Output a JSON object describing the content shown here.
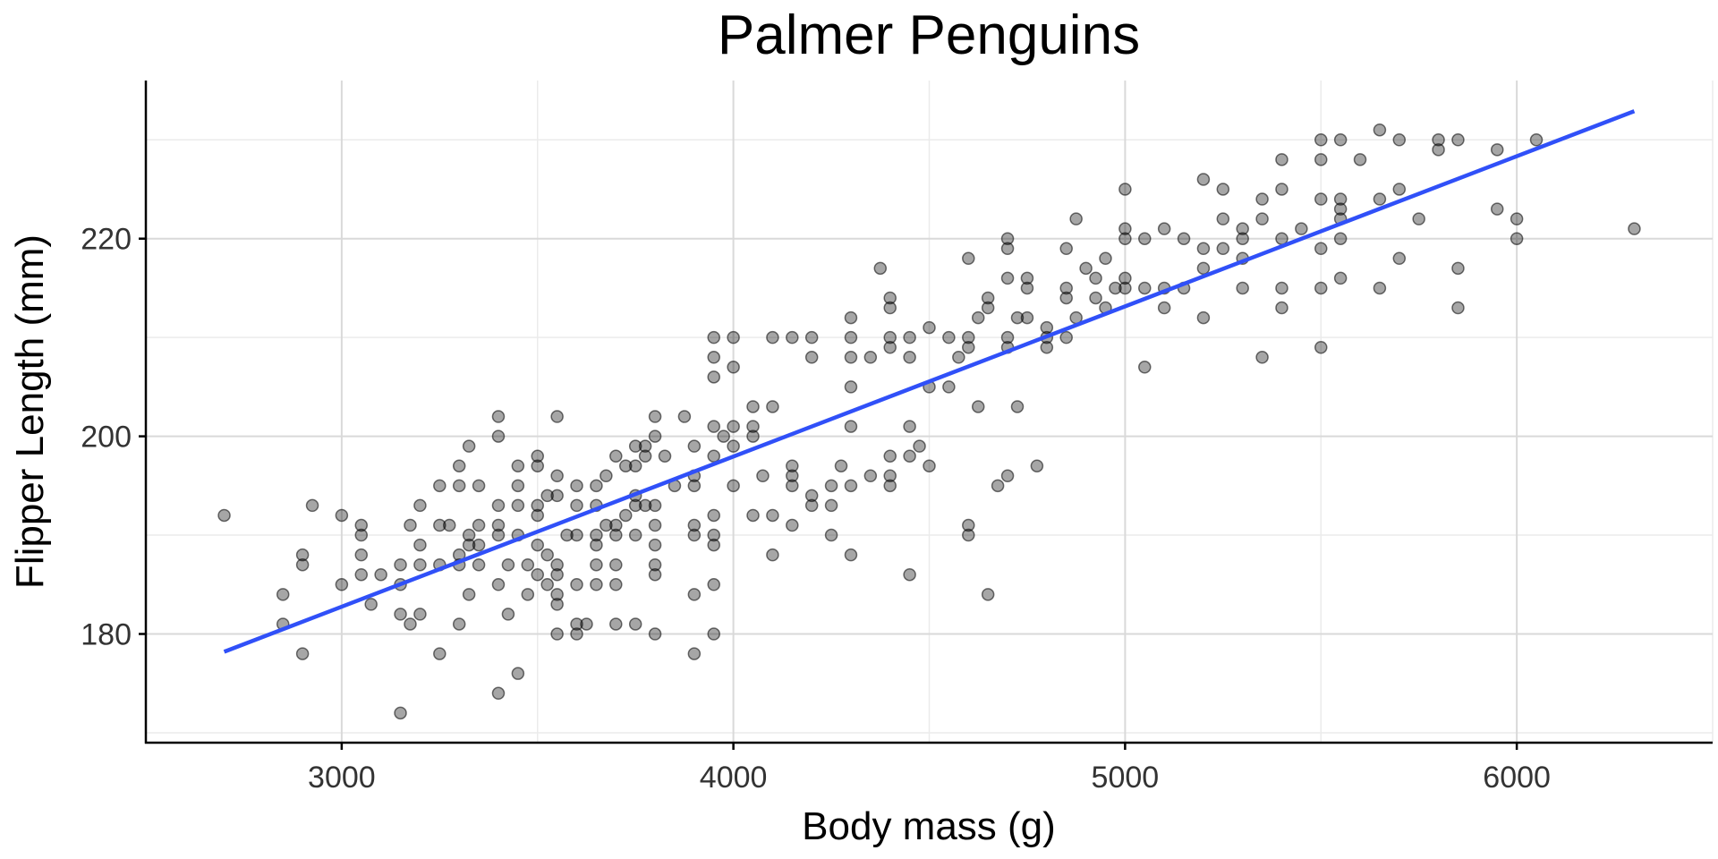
{
  "chart_data": {
    "type": "scatter",
    "title": "Palmer Penguins",
    "xlabel": "Body mass (g)",
    "ylabel": "Flipper Length (mm)",
    "xlim": [
      2500,
      6500
    ],
    "ylim": [
      169,
      236
    ],
    "x_ticks": [
      3000,
      4000,
      5000,
      6000
    ],
    "y_ticks": [
      180,
      200,
      220
    ],
    "grid": true,
    "colors": {
      "points": "#000000",
      "fit_line": "#3050f8"
    },
    "fit_line": {
      "x": [
        2700,
        6300
      ],
      "y": [
        178.2,
        232.9
      ]
    },
    "points": [
      [
        2700,
        192
      ],
      [
        2850,
        184
      ],
      [
        2850,
        181
      ],
      [
        2900,
        188
      ],
      [
        2900,
        187
      ],
      [
        2900,
        178
      ],
      [
        2925,
        193
      ],
      [
        3000,
        192
      ],
      [
        3000,
        185
      ],
      [
        3050,
        191
      ],
      [
        3050,
        190
      ],
      [
        3050,
        188
      ],
      [
        3050,
        186
      ],
      [
        3075,
        183
      ],
      [
        3100,
        186
      ],
      [
        3150,
        187
      ],
      [
        3150,
        185
      ],
      [
        3150,
        182
      ],
      [
        3150,
        172
      ],
      [
        3175,
        191
      ],
      [
        3175,
        181
      ],
      [
        3200,
        193
      ],
      [
        3200,
        189
      ],
      [
        3200,
        187
      ],
      [
        3200,
        182
      ],
      [
        3250,
        195
      ],
      [
        3250,
        191
      ],
      [
        3250,
        187
      ],
      [
        3250,
        178
      ],
      [
        3275,
        191
      ],
      [
        3300,
        197
      ],
      [
        3300,
        195
      ],
      [
        3300,
        188
      ],
      [
        3300,
        187
      ],
      [
        3300,
        181
      ],
      [
        3325,
        199
      ],
      [
        3325,
        190
      ],
      [
        3325,
        189
      ],
      [
        3325,
        184
      ],
      [
        3350,
        195
      ],
      [
        3350,
        191
      ],
      [
        3350,
        189
      ],
      [
        3350,
        187
      ],
      [
        3400,
        202
      ],
      [
        3400,
        200
      ],
      [
        3400,
        193
      ],
      [
        3400,
        191
      ],
      [
        3400,
        190
      ],
      [
        3400,
        185
      ],
      [
        3400,
        174
      ],
      [
        3425,
        187
      ],
      [
        3425,
        182
      ],
      [
        3450,
        197
      ],
      [
        3450,
        195
      ],
      [
        3450,
        193
      ],
      [
        3450,
        190
      ],
      [
        3450,
        176
      ],
      [
        3475,
        187
      ],
      [
        3475,
        184
      ],
      [
        3500,
        198
      ],
      [
        3500,
        197
      ],
      [
        3500,
        193
      ],
      [
        3500,
        192
      ],
      [
        3500,
        189
      ],
      [
        3500,
        186
      ],
      [
        3525,
        194
      ],
      [
        3525,
        188
      ],
      [
        3525,
        185
      ],
      [
        3550,
        202
      ],
      [
        3550,
        196
      ],
      [
        3550,
        194
      ],
      [
        3550,
        187
      ],
      [
        3550,
        186
      ],
      [
        3550,
        184
      ],
      [
        3550,
        183
      ],
      [
        3550,
        180
      ],
      [
        3575,
        190
      ],
      [
        3600,
        195
      ],
      [
        3600,
        193
      ],
      [
        3600,
        190
      ],
      [
        3600,
        185
      ],
      [
        3600,
        181
      ],
      [
        3600,
        180
      ],
      [
        3625,
        181
      ],
      [
        3650,
        195
      ],
      [
        3650,
        193
      ],
      [
        3650,
        190
      ],
      [
        3650,
        189
      ],
      [
        3650,
        187
      ],
      [
        3650,
        185
      ],
      [
        3675,
        196
      ],
      [
        3675,
        191
      ],
      [
        3700,
        198
      ],
      [
        3700,
        191
      ],
      [
        3700,
        190
      ],
      [
        3700,
        187
      ],
      [
        3700,
        185
      ],
      [
        3700,
        181
      ],
      [
        3725,
        197
      ],
      [
        3725,
        192
      ],
      [
        3750,
        199
      ],
      [
        3750,
        197
      ],
      [
        3750,
        194
      ],
      [
        3750,
        193
      ],
      [
        3750,
        190
      ],
      [
        3750,
        181
      ],
      [
        3775,
        198
      ],
      [
        3775,
        193
      ],
      [
        3775,
        199
      ],
      [
        3800,
        202
      ],
      [
        3800,
        200
      ],
      [
        3800,
        193
      ],
      [
        3800,
        191
      ],
      [
        3800,
        189
      ],
      [
        3800,
        187
      ],
      [
        3800,
        186
      ],
      [
        3800,
        180
      ],
      [
        3825,
        198
      ],
      [
        3850,
        195
      ],
      [
        3875,
        202
      ],
      [
        3900,
        199
      ],
      [
        3900,
        196
      ],
      [
        3900,
        195
      ],
      [
        3900,
        191
      ],
      [
        3900,
        190
      ],
      [
        3900,
        184
      ],
      [
        3900,
        178
      ],
      [
        3950,
        210
      ],
      [
        3950,
        208
      ],
      [
        3950,
        206
      ],
      [
        3950,
        201
      ],
      [
        3950,
        198
      ],
      [
        3950,
        192
      ],
      [
        3950,
        190
      ],
      [
        3950,
        189
      ],
      [
        3950,
        185
      ],
      [
        3950,
        180
      ],
      [
        3975,
        200
      ],
      [
        4000,
        210
      ],
      [
        4000,
        207
      ],
      [
        4000,
        201
      ],
      [
        4000,
        199
      ],
      [
        4000,
        195
      ],
      [
        4050,
        203
      ],
      [
        4050,
        201
      ],
      [
        4050,
        200
      ],
      [
        4050,
        192
      ],
      [
        4075,
        196
      ],
      [
        4100,
        210
      ],
      [
        4100,
        203
      ],
      [
        4100,
        192
      ],
      [
        4100,
        188
      ],
      [
        4150,
        210
      ],
      [
        4150,
        197
      ],
      [
        4150,
        196
      ],
      [
        4150,
        195
      ],
      [
        4150,
        191
      ],
      [
        4200,
        210
      ],
      [
        4200,
        208
      ],
      [
        4200,
        194
      ],
      [
        4200,
        193
      ],
      [
        4250,
        195
      ],
      [
        4250,
        193
      ],
      [
        4250,
        190
      ],
      [
        4275,
        197
      ],
      [
        4300,
        212
      ],
      [
        4300,
        210
      ],
      [
        4300,
        208
      ],
      [
        4300,
        205
      ],
      [
        4300,
        201
      ],
      [
        4300,
        195
      ],
      [
        4300,
        188
      ],
      [
        4350,
        208
      ],
      [
        4350,
        196
      ],
      [
        4375,
        217
      ],
      [
        4400,
        214
      ],
      [
        4400,
        213
      ],
      [
        4400,
        210
      ],
      [
        4400,
        209
      ],
      [
        4400,
        198
      ],
      [
        4400,
        196
      ],
      [
        4400,
        195
      ],
      [
        4450,
        210
      ],
      [
        4450,
        208
      ],
      [
        4450,
        201
      ],
      [
        4450,
        198
      ],
      [
        4450,
        186
      ],
      [
        4475,
        199
      ],
      [
        4500,
        211
      ],
      [
        4500,
        205
      ],
      [
        4500,
        197
      ],
      [
        4550,
        210
      ],
      [
        4550,
        205
      ],
      [
        4575,
        208
      ],
      [
        4600,
        218
      ],
      [
        4600,
        210
      ],
      [
        4600,
        209
      ],
      [
        4600,
        191
      ],
      [
        4600,
        190
      ],
      [
        4625,
        212
      ],
      [
        4625,
        203
      ],
      [
        4650,
        214
      ],
      [
        4650,
        213
      ],
      [
        4650,
        184
      ],
      [
        4675,
        195
      ],
      [
        4700,
        220
      ],
      [
        4700,
        219
      ],
      [
        4700,
        216
      ],
      [
        4700,
        210
      ],
      [
        4700,
        209
      ],
      [
        4700,
        196
      ],
      [
        4725,
        212
      ],
      [
        4725,
        203
      ],
      [
        4750,
        216
      ],
      [
        4750,
        215
      ],
      [
        4750,
        212
      ],
      [
        4775,
        197
      ],
      [
        4800,
        211
      ],
      [
        4800,
        210
      ],
      [
        4800,
        209
      ],
      [
        4850,
        219
      ],
      [
        4850,
        215
      ],
      [
        4850,
        214
      ],
      [
        4850,
        210
      ],
      [
        4875,
        222
      ],
      [
        4875,
        212
      ],
      [
        4900,
        217
      ],
      [
        4925,
        216
      ],
      [
        4925,
        214
      ],
      [
        4950,
        218
      ],
      [
        4950,
        213
      ],
      [
        4975,
        215
      ],
      [
        5000,
        225
      ],
      [
        5000,
        221
      ],
      [
        5000,
        220
      ],
      [
        5000,
        216
      ],
      [
        5000,
        215
      ],
      [
        5050,
        220
      ],
      [
        5050,
        215
      ],
      [
        5050,
        207
      ],
      [
        5100,
        221
      ],
      [
        5100,
        215
      ],
      [
        5100,
        213
      ],
      [
        5150,
        220
      ],
      [
        5150,
        215
      ],
      [
        5200,
        226
      ],
      [
        5200,
        219
      ],
      [
        5200,
        217
      ],
      [
        5200,
        212
      ],
      [
        5250,
        225
      ],
      [
        5250,
        222
      ],
      [
        5250,
        219
      ],
      [
        5300,
        221
      ],
      [
        5300,
        220
      ],
      [
        5300,
        218
      ],
      [
        5300,
        215
      ],
      [
        5350,
        224
      ],
      [
        5350,
        222
      ],
      [
        5350,
        208
      ],
      [
        5400,
        228
      ],
      [
        5400,
        225
      ],
      [
        5400,
        220
      ],
      [
        5400,
        215
      ],
      [
        5400,
        213
      ],
      [
        5450,
        221
      ],
      [
        5500,
        230
      ],
      [
        5500,
        228
      ],
      [
        5500,
        224
      ],
      [
        5500,
        219
      ],
      [
        5500,
        215
      ],
      [
        5500,
        209
      ],
      [
        5550,
        230
      ],
      [
        5550,
        224
      ],
      [
        5550,
        223
      ],
      [
        5550,
        222
      ],
      [
        5550,
        220
      ],
      [
        5550,
        216
      ],
      [
        5600,
        228
      ],
      [
        5650,
        231
      ],
      [
        5650,
        224
      ],
      [
        5650,
        215
      ],
      [
        5700,
        230
      ],
      [
        5700,
        225
      ],
      [
        5700,
        218
      ],
      [
        5750,
        222
      ],
      [
        5800,
        230
      ],
      [
        5800,
        229
      ],
      [
        5850,
        230
      ],
      [
        5850,
        217
      ],
      [
        5850,
        213
      ],
      [
        5950,
        229
      ],
      [
        5950,
        223
      ],
      [
        6000,
        222
      ],
      [
        6000,
        220
      ],
      [
        6050,
        230
      ],
      [
        6300,
        221
      ]
    ]
  }
}
